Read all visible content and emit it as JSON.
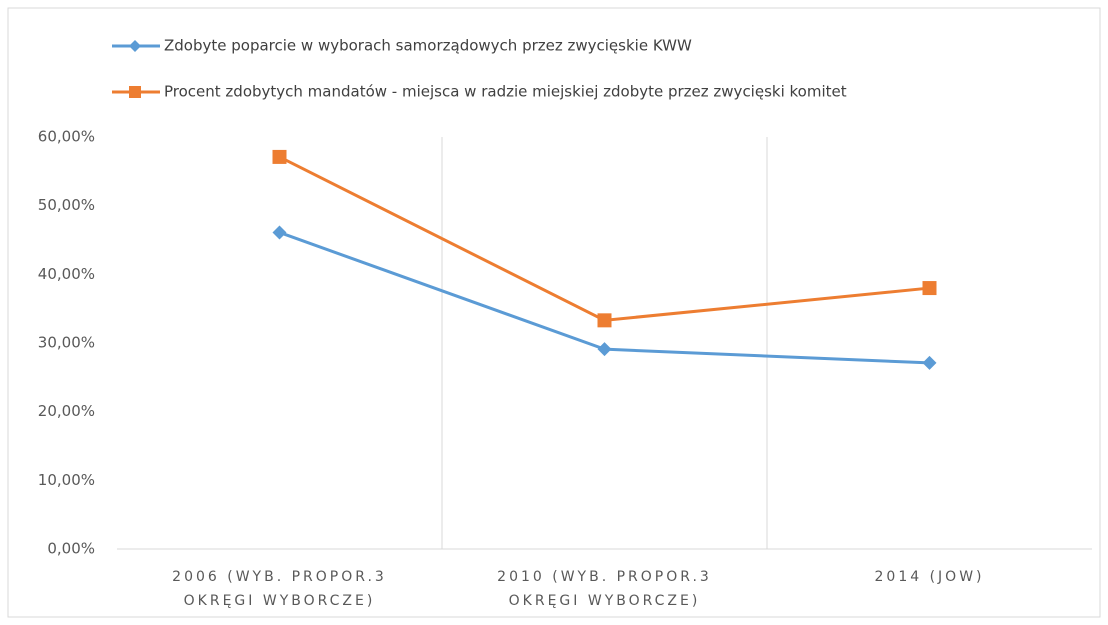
{
  "chart_data": {
    "type": "line",
    "categories": [
      "2006 (WYB. PROPOR.3\nOKRĘGI WYBORCZE)",
      "2010 (WYB. PROPOR.3\nOKRĘGI WYBORCZE)",
      "2014 (JOW)"
    ],
    "series": [
      {
        "name": "Zdobyte poparcie w wyborach samorządowych przez zwycięskie KWW",
        "color": "#5b9bd5",
        "marker": "diamond",
        "values": [
          46.1,
          29.1,
          27.1
        ]
      },
      {
        "name": "Procent zdobytych mandatów - miejsca w radzie miejskiej zdobyte przez zwycięski komitet",
        "color": "#ed7d31",
        "marker": "square",
        "values": [
          57.1,
          33.3,
          38.0
        ]
      }
    ],
    "ylim": [
      0,
      60
    ],
    "yticks": [
      {
        "value": 0,
        "label": "0,00%"
      },
      {
        "value": 10,
        "label": "10,00%"
      },
      {
        "value": 20,
        "label": "20,00%"
      },
      {
        "value": 30,
        "label": "30,00%"
      },
      {
        "value": 40,
        "label": "40,00%"
      },
      {
        "value": 50,
        "label": "50,00%"
      },
      {
        "value": 60,
        "label": "60,00%"
      }
    ],
    "legend": "top-left"
  }
}
